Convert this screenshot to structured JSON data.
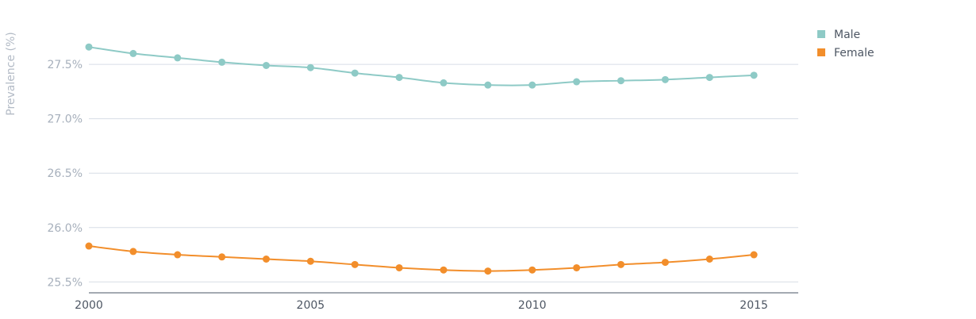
{
  "chart_data": {
    "type": "line",
    "title": "",
    "xlabel": "",
    "ylabel": "Prevalence (%)",
    "x": [
      2000,
      2001,
      2002,
      2003,
      2004,
      2005,
      2006,
      2007,
      2008,
      2009,
      2010,
      2011,
      2012,
      2013,
      2014,
      2015
    ],
    "xlim": [
      2000,
      2016
    ],
    "ylim": [
      25.4,
      27.8
    ],
    "x_ticks": [
      {
        "value": 2000,
        "label": "2000"
      },
      {
        "value": 2005,
        "label": "2005"
      },
      {
        "value": 2010,
        "label": "2010"
      },
      {
        "value": 2015,
        "label": "2015"
      }
    ],
    "y_ticks": [
      {
        "value": 25.5,
        "label": "25.5%"
      },
      {
        "value": 26.0,
        "label": "26.0%"
      },
      {
        "value": 26.5,
        "label": "26.5%"
      },
      {
        "value": 27.0,
        "label": "27.0%"
      },
      {
        "value": 27.5,
        "label": "27.5%"
      }
    ],
    "grid": true,
    "legend_position": "top-right",
    "series": [
      {
        "name": "Male",
        "color": "#8ecac6",
        "values": [
          27.66,
          27.6,
          27.56,
          27.52,
          27.49,
          27.47,
          27.42,
          27.38,
          27.33,
          27.31,
          27.31,
          27.34,
          27.35,
          27.36,
          27.38,
          27.4
        ]
      },
      {
        "name": "Female",
        "color": "#f28e2b",
        "values": [
          25.83,
          25.78,
          25.75,
          25.73,
          25.71,
          25.69,
          25.66,
          25.63,
          25.61,
          25.6,
          25.61,
          25.63,
          25.66,
          25.68,
          25.71,
          25.75
        ]
      }
    ]
  }
}
